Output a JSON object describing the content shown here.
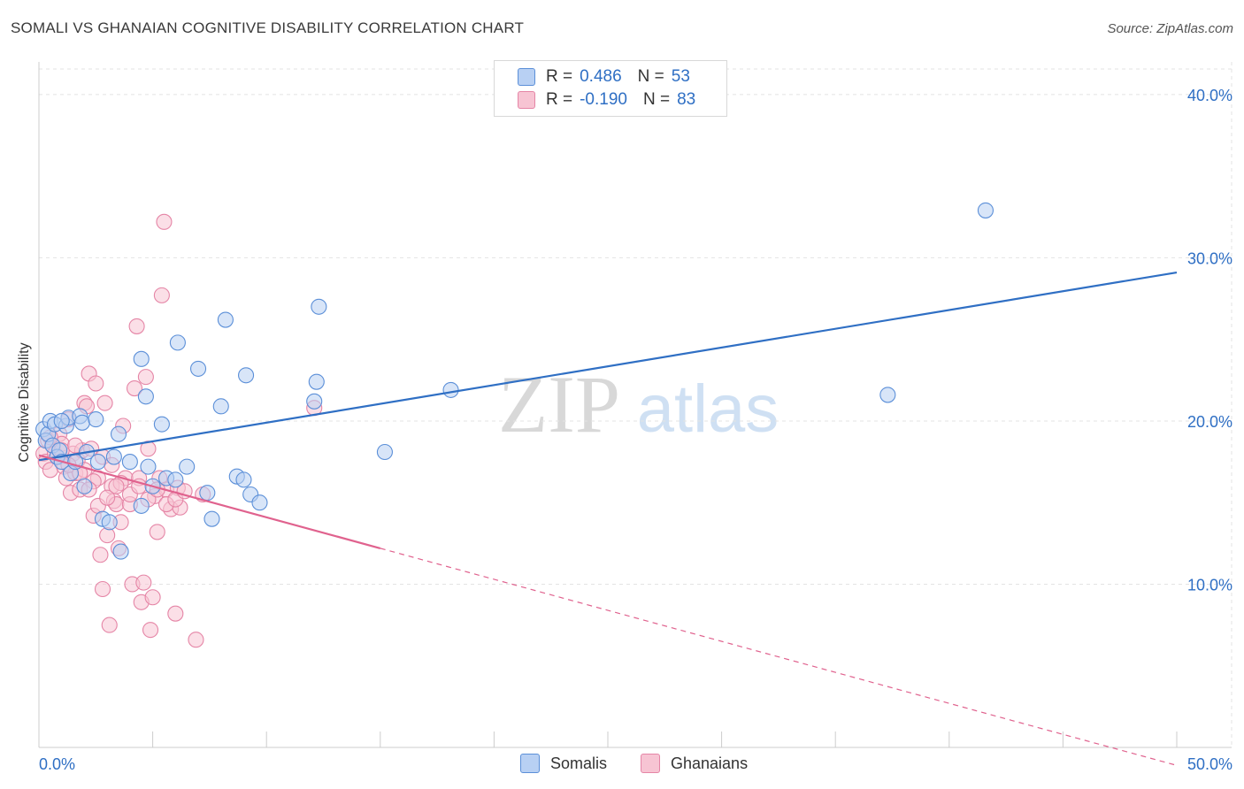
{
  "title": "SOMALI VS GHANAIAN COGNITIVE DISABILITY CORRELATION CHART",
  "source": "Source: ZipAtlas.com",
  "watermark": {
    "zip": "ZIP",
    "atlas": "atlas"
  },
  "colors": {
    "blue_fill": "#b8d0f3",
    "blue_stroke": "#5b8fd8",
    "blue_line": "#2f6fc4",
    "pink_fill": "#f7c4d3",
    "pink_stroke": "#e585a6",
    "pink_line": "#e0628e",
    "tick_text": "#2f6fc4",
    "grid": "#e3e3e3"
  },
  "legend": {
    "r_label": "R =",
    "n_label": "N =",
    "series": [
      {
        "r": "0.486",
        "n": "53"
      },
      {
        "r": "-0.190",
        "n": "83"
      }
    ]
  },
  "chart_data": {
    "type": "scatter",
    "title": "SOMALI VS GHANAIAN COGNITIVE DISABILITY CORRELATION CHART",
    "xlabel": "",
    "ylabel": "Cognitive Disability",
    "xlim": [
      0,
      50
    ],
    "ylim": [
      0,
      42
    ],
    "x_tick_labels": [
      "0.0%",
      "50.0%"
    ],
    "y_ticks": [
      10,
      20,
      30,
      40
    ],
    "y_tick_labels": [
      "10.0%",
      "20.0%",
      "30.0%",
      "40.0%"
    ],
    "grid": true,
    "series": [
      {
        "name": "Somalis",
        "trend": {
          "x0": 0,
          "y0": 17.6,
          "x1": 50,
          "y1": 29.1
        },
        "points": [
          [
            0.2,
            19.5
          ],
          [
            0.3,
            18.8
          ],
          [
            0.4,
            19.2
          ],
          [
            0.5,
            20.0
          ],
          [
            0.6,
            18.5
          ],
          [
            0.7,
            19.8
          ],
          [
            0.8,
            17.8
          ],
          [
            0.9,
            18.2
          ],
          [
            1.0,
            17.5
          ],
          [
            1.2,
            19.7
          ],
          [
            1.3,
            20.2
          ],
          [
            1.4,
            16.8
          ],
          [
            1.6,
            17.5
          ],
          [
            1.8,
            20.3
          ],
          [
            1.9,
            19.9
          ],
          [
            2.1,
            18.1
          ],
          [
            2.5,
            20.1
          ],
          [
            2.6,
            17.5
          ],
          [
            2.8,
            14.0
          ],
          [
            3.1,
            13.8
          ],
          [
            3.3,
            17.8
          ],
          [
            3.5,
            19.2
          ],
          [
            3.6,
            12.0
          ],
          [
            4.0,
            17.5
          ],
          [
            4.5,
            23.8
          ],
          [
            4.5,
            14.8
          ],
          [
            4.7,
            21.5
          ],
          [
            5.0,
            16.0
          ],
          [
            5.4,
            19.8
          ],
          [
            5.6,
            16.5
          ],
          [
            6.1,
            24.8
          ],
          [
            6.5,
            17.2
          ],
          [
            7.0,
            23.2
          ],
          [
            7.4,
            15.6
          ],
          [
            7.6,
            14.0
          ],
          [
            8.0,
            20.9
          ],
          [
            8.2,
            26.2
          ],
          [
            8.7,
            16.6
          ],
          [
            9.1,
            22.8
          ],
          [
            9.3,
            15.5
          ],
          [
            9.7,
            15.0
          ],
          [
            12.1,
            21.2
          ],
          [
            12.2,
            22.4
          ],
          [
            12.3,
            27.0
          ],
          [
            15.2,
            18.1
          ],
          [
            18.1,
            21.9
          ],
          [
            37.3,
            21.6
          ],
          [
            41.6,
            32.9
          ],
          [
            1.0,
            20.0
          ],
          [
            2.0,
            16.0
          ],
          [
            4.8,
            17.2
          ],
          [
            6.0,
            16.4
          ],
          [
            9.0,
            16.4
          ]
        ]
      },
      {
        "name": "Ghanaians",
        "trend": {
          "x0": 0,
          "y0": 17.9,
          "x1": 15,
          "y1": 12.2,
          "dash_to": {
            "x": 50,
            "y": -1.1
          }
        },
        "points": [
          [
            0.2,
            18.0
          ],
          [
            0.3,
            17.5
          ],
          [
            0.4,
            18.8
          ],
          [
            0.5,
            17.0
          ],
          [
            0.6,
            18.5
          ],
          [
            0.7,
            18.0
          ],
          [
            0.8,
            17.8
          ],
          [
            0.9,
            19.2
          ],
          [
            1.0,
            18.6
          ],
          [
            1.1,
            17.2
          ],
          [
            1.2,
            16.5
          ],
          [
            1.3,
            20.1
          ],
          [
            1.4,
            15.6
          ],
          [
            1.5,
            18.0
          ],
          [
            1.6,
            16.8
          ],
          [
            1.7,
            17.6
          ],
          [
            1.8,
            15.8
          ],
          [
            1.9,
            18.2
          ],
          [
            2.0,
            21.1
          ],
          [
            2.1,
            20.9
          ],
          [
            2.2,
            22.9
          ],
          [
            2.3,
            18.3
          ],
          [
            2.4,
            14.2
          ],
          [
            2.5,
            22.3
          ],
          [
            2.6,
            16.5
          ],
          [
            2.7,
            11.8
          ],
          [
            2.8,
            9.7
          ],
          [
            2.9,
            21.1
          ],
          [
            3.0,
            13.0
          ],
          [
            3.1,
            7.5
          ],
          [
            3.2,
            16.0
          ],
          [
            3.3,
            15.1
          ],
          [
            3.4,
            14.9
          ],
          [
            3.5,
            12.2
          ],
          [
            3.6,
            13.8
          ],
          [
            3.7,
            19.7
          ],
          [
            3.8,
            16.5
          ],
          [
            4.0,
            14.9
          ],
          [
            4.1,
            10.0
          ],
          [
            4.2,
            22.0
          ],
          [
            4.3,
            25.8
          ],
          [
            4.4,
            16.5
          ],
          [
            4.5,
            8.9
          ],
          [
            4.6,
            10.1
          ],
          [
            4.7,
            22.7
          ],
          [
            4.8,
            18.3
          ],
          [
            4.9,
            7.2
          ],
          [
            5.0,
            9.2
          ],
          [
            5.1,
            15.4
          ],
          [
            5.2,
            13.2
          ],
          [
            5.3,
            16.5
          ],
          [
            5.4,
            27.7
          ],
          [
            5.5,
            32.2
          ],
          [
            5.6,
            15.8
          ],
          [
            5.8,
            14.6
          ],
          [
            6.0,
            8.2
          ],
          [
            6.1,
            15.9
          ],
          [
            6.2,
            14.7
          ],
          [
            6.9,
            6.6
          ],
          [
            7.2,
            15.5
          ],
          [
            12.1,
            20.8
          ],
          [
            0.5,
            19.0
          ],
          [
            0.8,
            17.8
          ],
          [
            1.0,
            18.2
          ],
          [
            1.3,
            17.3
          ],
          [
            1.6,
            18.5
          ],
          [
            2.0,
            17.0
          ],
          [
            2.4,
            16.3
          ],
          [
            2.8,
            17.8
          ],
          [
            3.2,
            17.3
          ],
          [
            3.6,
            16.2
          ],
          [
            4.0,
            15.5
          ],
          [
            4.4,
            16.0
          ],
          [
            4.8,
            15.2
          ],
          [
            5.2,
            15.8
          ],
          [
            5.6,
            14.9
          ],
          [
            6.0,
            15.2
          ],
          [
            6.4,
            15.7
          ],
          [
            1.8,
            16.8
          ],
          [
            2.2,
            15.8
          ],
          [
            2.6,
            14.8
          ],
          [
            3.0,
            15.3
          ],
          [
            3.4,
            16.0
          ]
        ]
      }
    ]
  }
}
